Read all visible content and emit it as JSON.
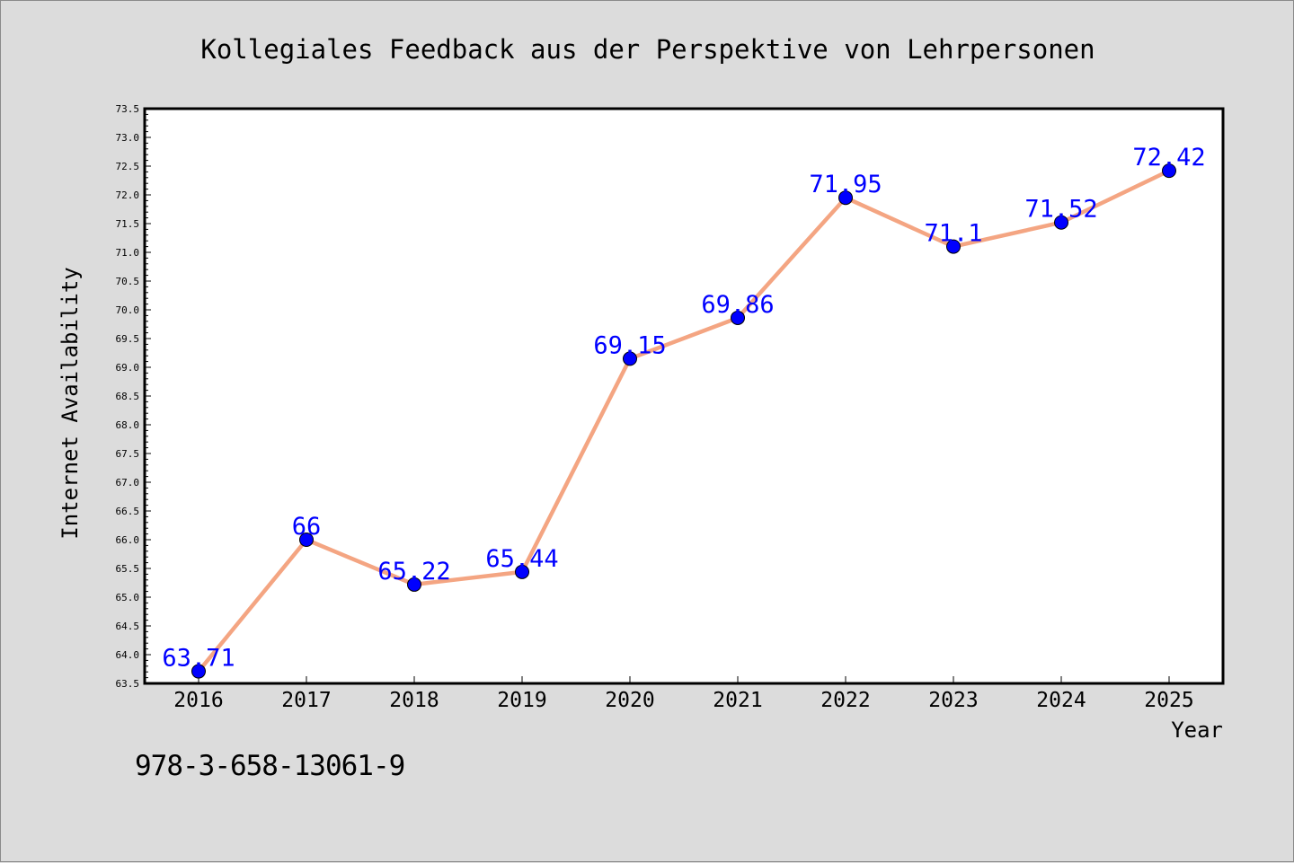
{
  "chart_data": {
    "type": "line",
    "title": "Kollegiales Feedback aus der Perspektive von Lehrpersonen",
    "xlabel": "Year",
    "ylabel": "Internet Availability",
    "categories": [
      "2016",
      "2017",
      "2018",
      "2019",
      "2020",
      "2021",
      "2022",
      "2023",
      "2024",
      "2025"
    ],
    "series": [
      {
        "values": [
          63.71,
          66,
          65.22,
          65.44,
          69.15,
          69.86,
          71.95,
          71.1,
          71.52,
          72.42
        ],
        "data_labels": [
          "63.71",
          "66",
          "65.22",
          "65.44",
          "69.15",
          "69.86",
          "71.95",
          "71.1",
          "71.52",
          "72.42"
        ],
        "line_color": "#f4a582",
        "marker_color": "#0000ff"
      }
    ],
    "ylim": [
      63.5,
      73.5
    ],
    "yticks": [
      "63.5",
      "64.0",
      "64.5",
      "65.0",
      "65.5",
      "66.0",
      "66.5",
      "67.0",
      "67.5",
      "68.0",
      "68.5",
      "69.0",
      "69.5",
      "70.0",
      "70.5",
      "71.0",
      "71.5",
      "72.0",
      "72.5",
      "73.0",
      "73.5"
    ],
    "grid": false,
    "legend": "none",
    "label_color": "#0000ff"
  },
  "footer_code": "978-3-658-13061-9"
}
